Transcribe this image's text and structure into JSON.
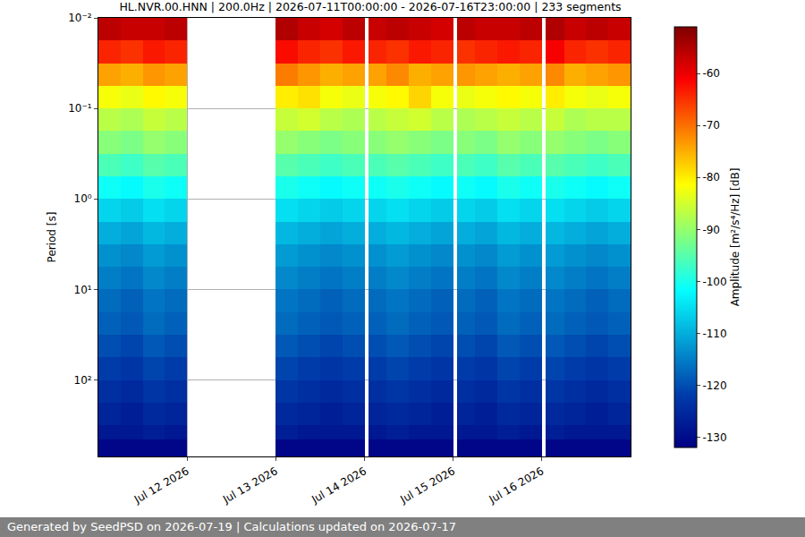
{
  "chart_data": {
    "type": "heatmap",
    "title": "HL.NVR.00.HNN | 200.0Hz | 2026-07-11T00:00:00 - 2026-07-16T23:00:00 | 233 segments",
    "footer": "Generated by SeedPSD on 2026-07-19 | Calculations updated on 2026-07-17",
    "y_label": "Period [s]",
    "x": [
      "2026-07-11 00:00",
      "2026-07-11 06:00",
      "2026-07-11 12:00",
      "2026-07-11 18:00",
      "2026-07-12 00:00",
      "2026-07-13 00:00",
      "2026-07-13 06:00",
      "2026-07-13 12:00",
      "2026-07-13 18:00",
      "2026-07-14 00:00",
      "2026-07-14 01:00",
      "2026-07-14 06:00",
      "2026-07-14 12:00",
      "2026-07-14 18:00",
      "2026-07-15 00:00",
      "2026-07-15 01:00",
      "2026-07-15 06:00",
      "2026-07-15 12:00",
      "2026-07-15 18:00",
      "2026-07-16 00:00",
      "2026-07-16 01:00",
      "2026-07-16 06:00",
      "2026-07-16 12:00",
      "2026-07-16 18:00",
      "2026-07-17 00:00"
    ],
    "y": [
      0.01,
      0.0178,
      0.0316,
      0.0562,
      0.1,
      0.178,
      0.316,
      0.562,
      1,
      1.78,
      3.16,
      5.62,
      10,
      17.8,
      31.6,
      56.2,
      100,
      178,
      316,
      450,
      700
    ],
    "z": [
      [
        -56,
        -57,
        -57,
        -56,
        null,
        -55,
        -57,
        -58,
        -56,
        null,
        -57,
        -56,
        -57,
        -58,
        null,
        -56,
        -57,
        -57,
        -56,
        null,
        -55,
        -57,
        -56,
        -57
      ],
      [
        -64,
        -65,
        -63,
        -64,
        null,
        -62,
        -64,
        -65,
        -63,
        null,
        -64,
        -65,
        -63,
        -64,
        null,
        -65,
        -64,
        -63,
        -64,
        null,
        -61,
        -64,
        -65,
        -64
      ],
      [
        -74,
        -75,
        -73,
        -74,
        null,
        -71,
        -73,
        -75,
        -74,
        null,
        -74,
        -72,
        -75,
        -74,
        null,
        -73,
        -74,
        -75,
        -74,
        null,
        -72,
        -75,
        -74,
        -73
      ],
      [
        -82,
        -83,
        -81,
        -82,
        null,
        -80,
        -79,
        -82,
        -83,
        null,
        -82,
        -81,
        -78,
        -82,
        null,
        -83,
        -82,
        -81,
        -82,
        null,
        -80,
        -82,
        -83,
        -82
      ],
      [
        -87,
        -88,
        -86,
        -87,
        null,
        -86,
        -85,
        -87,
        -88,
        null,
        -87,
        -86,
        -85,
        -87,
        null,
        -88,
        -87,
        -86,
        -87,
        null,
        -86,
        -88,
        -87,
        -87
      ],
      [
        -91,
        -92,
        -90,
        -91,
        null,
        -90,
        -91,
        -92,
        -91,
        null,
        -91,
        -90,
        -91,
        -92,
        null,
        -91,
        -92,
        -90,
        -91,
        null,
        -90,
        -91,
        -92,
        -91
      ],
      [
        -96,
        -97,
        -95,
        -96,
        null,
        -95,
        -96,
        -97,
        -96,
        null,
        -96,
        -95,
        -96,
        -97,
        null,
        -96,
        -97,
        -95,
        -96,
        null,
        -95,
        -96,
        -97,
        -96
      ],
      [
        -101,
        -102,
        -100,
        -101,
        null,
        -100,
        -101,
        -102,
        -101,
        null,
        -101,
        -100,
        -101,
        -102,
        null,
        -101,
        -102,
        -100,
        -101,
        null,
        -100,
        -101,
        -102,
        -101
      ],
      [
        -106,
        -107,
        -105,
        -106,
        null,
        -105,
        -106,
        -107,
        -106,
        null,
        -106,
        -105,
        -106,
        -107,
        null,
        -106,
        -107,
        -105,
        -106,
        null,
        -105,
        -106,
        -107,
        -106
      ],
      [
        -110,
        -111,
        -109,
        -110,
        null,
        -109,
        -110,
        -111,
        -110,
        null,
        -110,
        -109,
        -110,
        -111,
        null,
        -110,
        -111,
        -109,
        -110,
        null,
        -109,
        -110,
        -111,
        -110
      ],
      [
        -113,
        -114,
        -112,
        -113,
        null,
        -112,
        -113,
        -114,
        -113,
        null,
        -113,
        -112,
        -113,
        -114,
        null,
        -113,
        -114,
        -112,
        -113,
        null,
        -112,
        -113,
        -114,
        -113
      ],
      [
        -115,
        -116,
        -114,
        -115,
        null,
        -114,
        -115,
        -116,
        -115,
        null,
        -115,
        -114,
        -115,
        -116,
        null,
        -115,
        -116,
        -114,
        -115,
        null,
        -114,
        -115,
        -116,
        -115
      ],
      [
        -117,
        -118,
        -116,
        -117,
        null,
        -116,
        -117,
        -118,
        -117,
        null,
        -117,
        -116,
        -117,
        -118,
        null,
        -117,
        -118,
        -116,
        -117,
        null,
        -116,
        -117,
        -118,
        -117
      ],
      [
        -118,
        -119,
        -117,
        -118,
        null,
        -117,
        -118,
        -119,
        -118,
        null,
        -118,
        -117,
        -118,
        -119,
        null,
        -118,
        -119,
        -117,
        -118,
        null,
        -117,
        -118,
        -119,
        -118
      ],
      [
        -120,
        -121,
        -119,
        -120,
        null,
        -119,
        -120,
        -121,
        -120,
        null,
        -120,
        -119,
        -120,
        -121,
        null,
        -120,
        -121,
        -119,
        -120,
        null,
        -119,
        -120,
        -121,
        -120
      ],
      [
        -122,
        -123,
        -121,
        -122,
        null,
        -121,
        -122,
        -123,
        -122,
        null,
        -122,
        -121,
        -122,
        -123,
        null,
        -122,
        -123,
        -121,
        -122,
        null,
        -121,
        -122,
        -123,
        -122
      ],
      [
        -124,
        -125,
        -123,
        -124,
        null,
        -123,
        -124,
        -125,
        -124,
        null,
        -124,
        -123,
        -124,
        -125,
        null,
        -124,
        -125,
        -123,
        -124,
        null,
        -123,
        -124,
        -125,
        -124
      ],
      [
        -126,
        -127,
        -125,
        -126,
        null,
        -125,
        -126,
        -127,
        -126,
        null,
        -126,
        -125,
        -126,
        -127,
        null,
        -126,
        -127,
        -125,
        -126,
        null,
        -125,
        -126,
        -127,
        -126
      ],
      [
        -128,
        -128,
        -127,
        -128,
        null,
        -127,
        -128,
        -128,
        -128,
        null,
        -128,
        -127,
        -128,
        -128,
        null,
        -128,
        -128,
        -127,
        -128,
        null,
        -127,
        -128,
        -128,
        -128
      ],
      [
        -131,
        -131,
        -131,
        -131,
        null,
        -131,
        -131,
        -131,
        -131,
        null,
        -131,
        -131,
        -131,
        -131,
        null,
        -131,
        -131,
        -131,
        -131,
        null,
        -131,
        -131,
        -131,
        -131
      ]
    ],
    "xlim": [
      "2026-07-11 00:00",
      "2026-07-17 00:00"
    ],
    "xticks": [
      {
        "value": "2026-07-12 00:00",
        "label": "Jul 12 2026"
      },
      {
        "value": "2026-07-13 00:00",
        "label": "Jul 13 2026"
      },
      {
        "value": "2026-07-14 00:00",
        "label": "Jul 14 2026"
      },
      {
        "value": "2026-07-15 00:00",
        "label": "Jul 15 2026"
      },
      {
        "value": "2026-07-16 00:00",
        "label": "Jul 16 2026"
      }
    ],
    "ylim": [
      0.01,
      700
    ],
    "yticks": [
      {
        "value": 0.01,
        "label": "10⁻²"
      },
      {
        "value": 0.1,
        "label": "10⁻¹"
      },
      {
        "value": 1,
        "label": "10⁰"
      },
      {
        "value": 10,
        "label": "10¹"
      },
      {
        "value": 100,
        "label": "10²"
      }
    ],
    "log": "y",
    "grid": true,
    "colorbar": {
      "title": "Amplitude [m²/s⁴/Hz] [dB]",
      "range": [
        -132,
        -51
      ],
      "ticks": [
        -130,
        -120,
        -110,
        -100,
        -90,
        -80,
        -70,
        -60
      ]
    }
  }
}
